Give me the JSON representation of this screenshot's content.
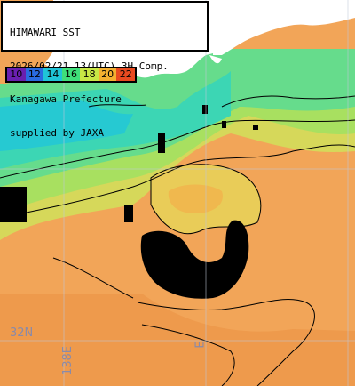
{
  "title": {
    "lines": [
      "HIMAWARI SST",
      "2026/02/21 13(UTC) 3H Comp.",
      "Kanagawa Prefecture",
      "supplied by JAXA"
    ]
  },
  "legend": {
    "values": [
      "10",
      "12",
      "14",
      "16",
      "18",
      "20",
      "22"
    ],
    "colors": [
      "#6a1fb0",
      "#2a6be0",
      "#1fc4d8",
      "#3fe07a",
      "#c8e845",
      "#f5b030",
      "#e84a20"
    ]
  },
  "grid_labels": {
    "latitude": "32N",
    "longitude": "138E",
    "longitude_partial": "E"
  },
  "colors": {
    "land": "#ffffff",
    "warm_sea": "#f2a85a",
    "mid_sea": "#d8d860",
    "cool_sea": "#4cd8a0",
    "cold_sea": "#2ad0c8",
    "cloud_mask": "#000000"
  }
}
